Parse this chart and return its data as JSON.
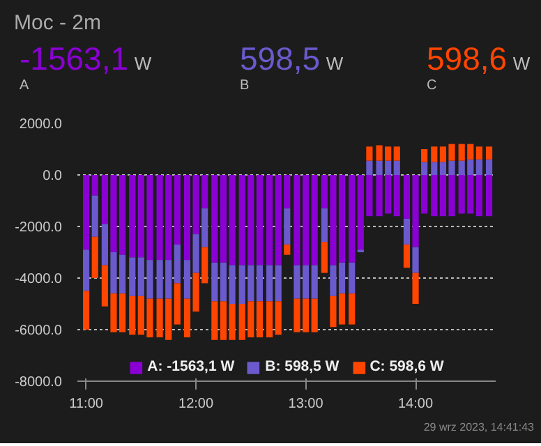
{
  "chart_data": {
    "type": "bar",
    "stacked": true,
    "title": "Moc - 2m",
    "annotations": [
      "-1563,1 W",
      "598,5 W",
      "598,6 W",
      "A",
      "B",
      "C",
      "29 wrz 2023, 14:41:43"
    ],
    "x": [
      11.0,
      11.08,
      11.17,
      11.25,
      11.33,
      11.42,
      11.5,
      11.58,
      11.67,
      11.75,
      11.83,
      11.92,
      12.0,
      12.08,
      12.17,
      12.25,
      12.33,
      12.42,
      12.5,
      12.58,
      12.67,
      12.75,
      12.83,
      12.92,
      13.0,
      13.08,
      13.17,
      13.25,
      13.33,
      13.42,
      13.5,
      13.58,
      13.67,
      13.75,
      13.83,
      13.92,
      14.0,
      14.08,
      14.17,
      14.25,
      14.33,
      14.42,
      14.5,
      14.58,
      14.67
    ],
    "series": [
      {
        "name": "A: -1563,1 W",
        "color": "#8a00d4",
        "values": [
          -2900,
          -800,
          -1900,
          -3000,
          -3100,
          -3200,
          -3200,
          -3300,
          -3300,
          -3300,
          -2700,
          -3300,
          -2300,
          -1300,
          -3400,
          -3400,
          -3500,
          -3500,
          -3500,
          -3500,
          -3500,
          -3500,
          -1300,
          -3500,
          -3500,
          -3500,
          -1300,
          -3500,
          -3400,
          -3400,
          -2900,
          -1600,
          -1600,
          -1500,
          -1600,
          -1700,
          -2800,
          -1500,
          -1600,
          -1600,
          -1600,
          -1500,
          -1500,
          -1600,
          -1600
        ]
      },
      {
        "name": "B: 598,5 W",
        "color": "#6a5acd",
        "values": [
          -1600,
          -1600,
          -1600,
          -1600,
          -1500,
          -1500,
          -1500,
          -1500,
          -1500,
          -1500,
          -1500,
          -1500,
          -1500,
          -1500,
          -1500,
          -1500,
          -1500,
          -1500,
          -1400,
          -1400,
          -1400,
          -1400,
          -1400,
          -1300,
          -1300,
          -1300,
          -1300,
          -1200,
          -1200,
          -1200,
          -100,
          550,
          550,
          550,
          550,
          -1000,
          -1000,
          500,
          500,
          500,
          550,
          550,
          600,
          600,
          600
        ]
      },
      {
        "name": "C: 598,6 W",
        "color": "#ff4500",
        "values": [
          -1500,
          -1600,
          -1600,
          -1500,
          -1500,
          -1500,
          -1500,
          -1500,
          -1500,
          -1600,
          -1600,
          -1500,
          -1500,
          -1400,
          -1500,
          -1500,
          -1400,
          -1400,
          -1400,
          -1400,
          -1400,
          -1300,
          -400,
          -1300,
          -1300,
          -1300,
          -1200,
          -1200,
          -1200,
          -1200,
          0,
          550,
          600,
          550,
          550,
          -900,
          -1200,
          500,
          600,
          600,
          650,
          650,
          600,
          500,
          500
        ]
      }
    ],
    "xlim": [
      10.92,
      14.73
    ],
    "xticks": [
      {
        "value": 11,
        "label": "11:00"
      },
      {
        "value": 12,
        "label": "12:00"
      },
      {
        "value": 13,
        "label": "13:00"
      },
      {
        "value": 14,
        "label": "14:00"
      }
    ],
    "ylim": [
      -8000,
      2000
    ],
    "yticks": [
      {
        "value": 2000,
        "label": "2000.0"
      },
      {
        "value": 0,
        "label": "0.0"
      },
      {
        "value": -2000,
        "label": "-2000.0"
      },
      {
        "value": -4000,
        "label": "-4000.0"
      },
      {
        "value": -6000,
        "label": "-6000.0"
      },
      {
        "value": -8000,
        "label": "-8000.0"
      }
    ],
    "grid": "y",
    "legend": "bottom"
  }
}
